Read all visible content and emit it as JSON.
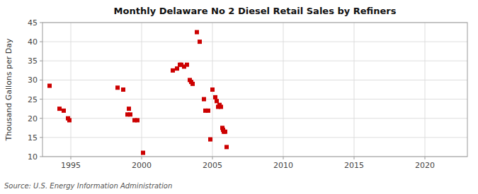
{
  "chart_data": {
    "type": "scatter",
    "title": "Monthly Delaware No 2 Diesel Retail Sales by Refiners",
    "ylabel": "Thousand Gallons per Day",
    "annotations": [
      "Source: U.S. Energy Information Administration"
    ],
    "color": "#cc0000",
    "marker": "square",
    "grid": true,
    "xlim": [
      1993,
      2023
    ],
    "ylim": [
      10,
      45
    ],
    "xticks": [
      1995,
      2000,
      2005,
      2010,
      2015,
      2020
    ],
    "yticks": [
      10,
      15,
      20,
      25,
      30,
      35,
      40,
      45
    ],
    "x": [
      1993.5,
      1994.2,
      1994.5,
      1994.8,
      1994.9,
      1998.3,
      1998.7,
      1999.0,
      1999.1,
      1999.2,
      1999.5,
      1999.7,
      2000.1,
      2002.2,
      2002.5,
      2002.7,
      2002.8,
      2003.0,
      2003.2,
      2003.4,
      2003.5,
      2003.6,
      2003.9,
      2004.1,
      2004.4,
      2004.5,
      2004.7,
      2004.85,
      2005.0,
      2005.2,
      2005.3,
      2005.4,
      2005.5,
      2005.6,
      2005.7,
      2005.75,
      2005.8,
      2005.9,
      2006.0
    ],
    "values": [
      28.5,
      22.5,
      22.0,
      20.0,
      19.5,
      28.0,
      27.5,
      21.0,
      22.5,
      21.0,
      19.5,
      19.5,
      11.0,
      32.5,
      33.0,
      34.0,
      34.0,
      33.5,
      34.0,
      30.0,
      29.5,
      29.0,
      42.5,
      40.0,
      25.0,
      22.0,
      22.0,
      14.5,
      27.5,
      25.5,
      24.5,
      23.0,
      23.5,
      23.0,
      17.5,
      17.0,
      16.5,
      16.5,
      12.5
    ]
  }
}
